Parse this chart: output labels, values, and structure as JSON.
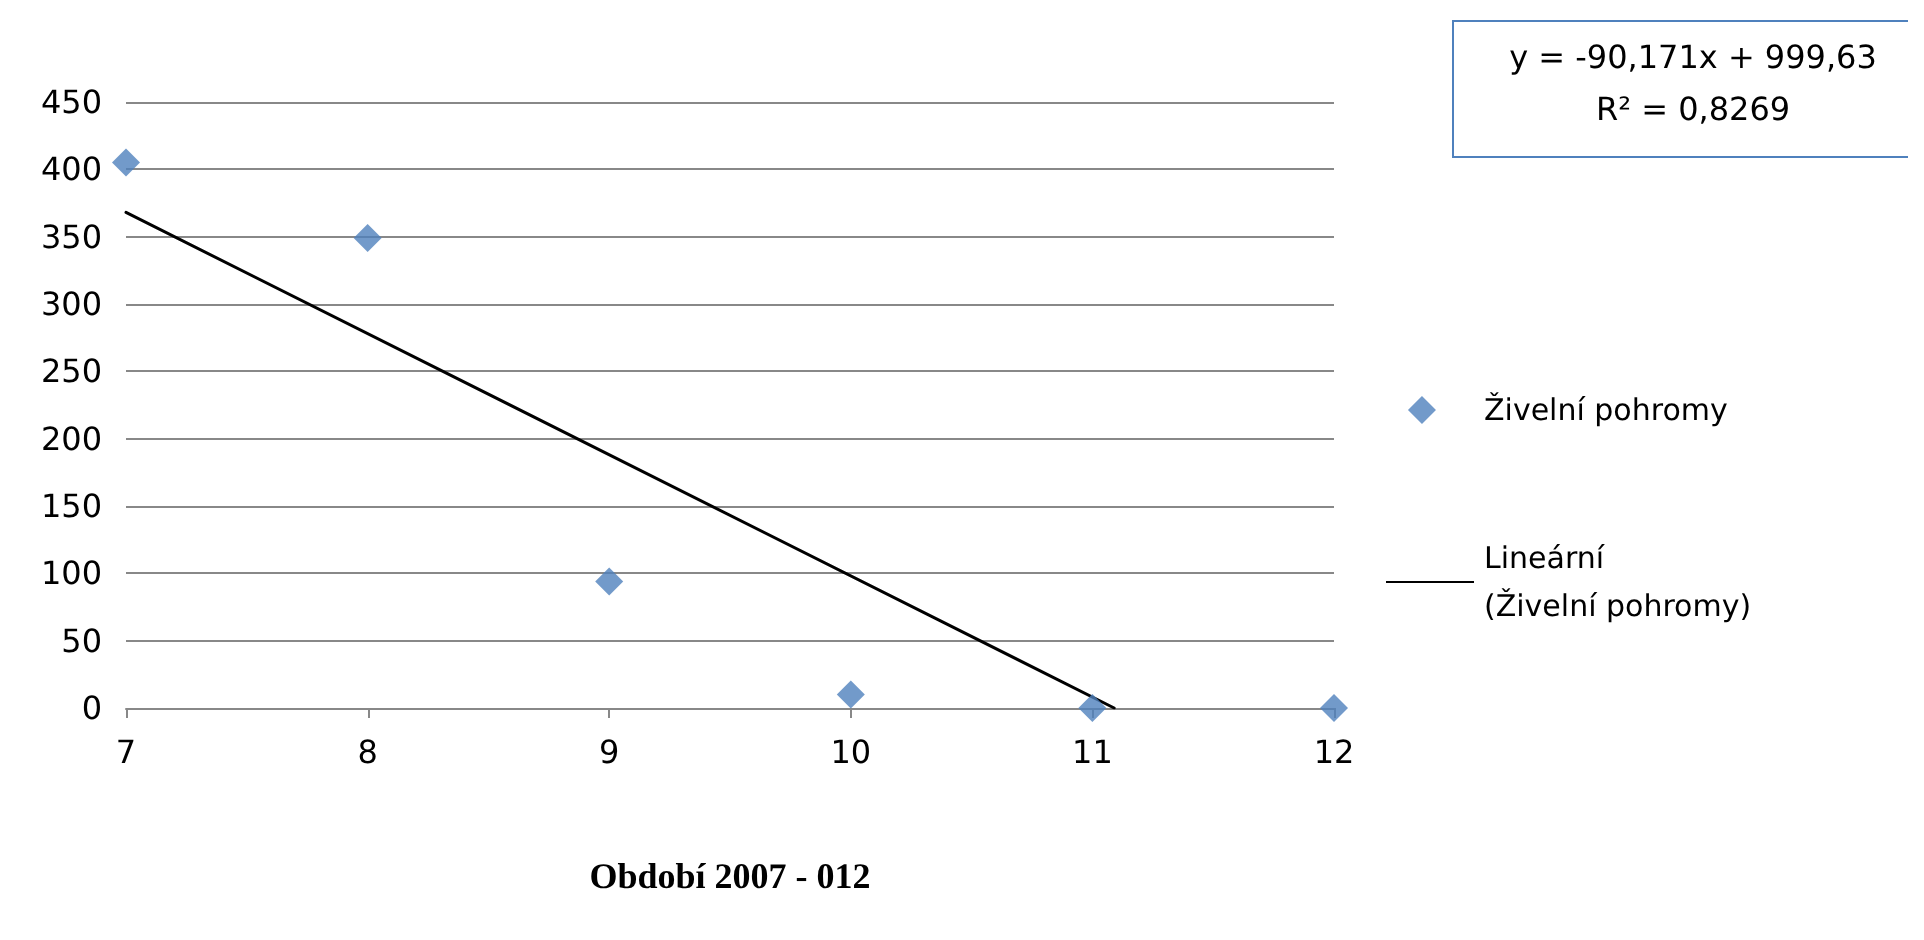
{
  "chart_data": {
    "type": "scatter",
    "xlabel": "Období 2007 - 012",
    "annotations": [
      "y = -90,171x + 999,63",
      "R² = 0,8269"
    ],
    "series": [
      {
        "name": "Živelní pohromy",
        "type": "scatter",
        "color": "#4f81bd",
        "marker": "diamond",
        "x": [
          7,
          8,
          9,
          10,
          11,
          12
        ],
        "values": [
          405,
          349,
          94,
          10,
          0,
          0
        ]
      },
      {
        "name": "Lineární (Živelní pohromy)",
        "type": "line",
        "color": "#000000",
        "marker": "none",
        "line_style": "solid",
        "x": [
          7,
          11.09
        ],
        "values": [
          368,
          0
        ]
      }
    ],
    "xlim": [
      7,
      12
    ],
    "xticks": [
      7,
      8,
      9,
      10,
      11,
      12
    ],
    "ylim": [
      0,
      450
    ],
    "yticks": [
      0,
      50,
      100,
      150,
      200,
      250,
      300,
      350,
      400,
      450
    ],
    "grid": "y",
    "legend": "right"
  }
}
